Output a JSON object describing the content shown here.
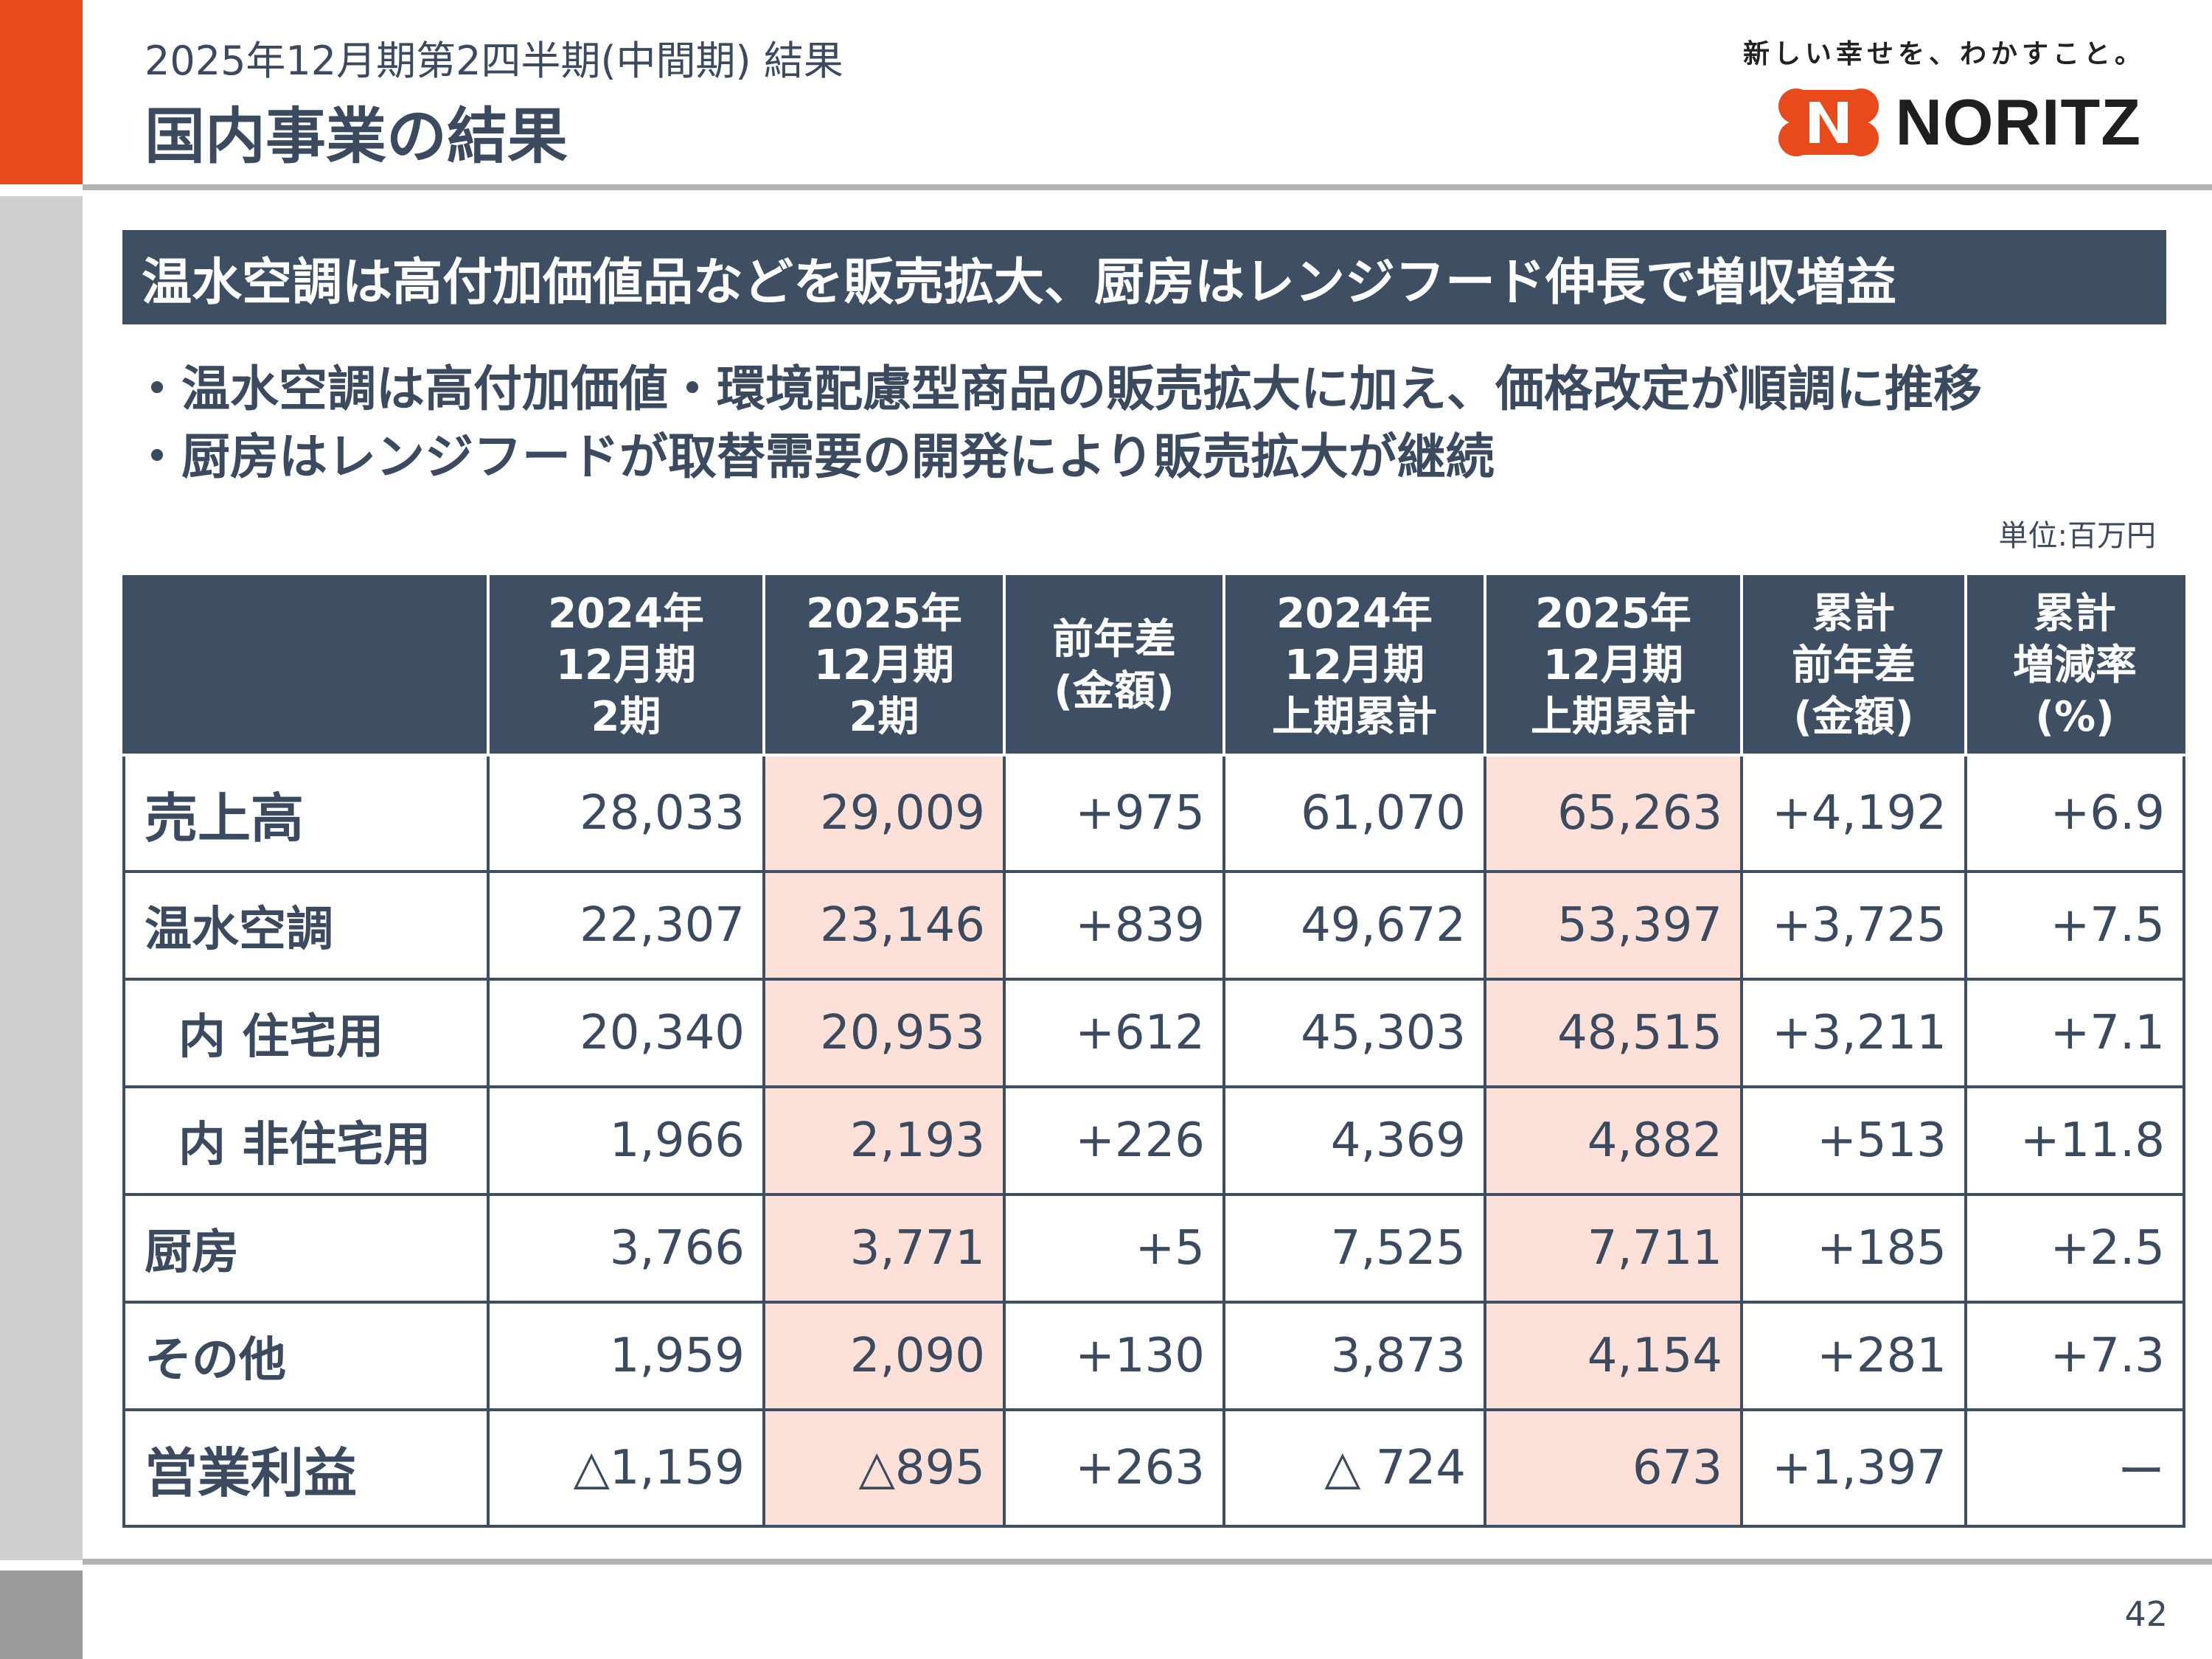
{
  "header": {
    "supertitle": "2025年12月期第2四半期(中間期) 結果",
    "title": "国内事業の結果",
    "tagline": "新しい幸せを、わかすこと。",
    "brand": "NORITZ"
  },
  "banner": "温水空調は高付加価値品などを販売拡大、厨房はレンジフード伸長で増収増益",
  "bullets": [
    "・温水空調は高付加価値・環境配慮型商品の販売拡大に加え、価格改定が順調に推移",
    "・厨房はレンジフードが取替需要の開発により販売拡大が継続"
  ],
  "unit": "単位:百万円",
  "table": {
    "headers": [
      [
        ""
      ],
      [
        "2024年",
        "12月期",
        "2期"
      ],
      [
        "2025年",
        "12月期",
        "2期"
      ],
      [
        "前年差",
        "(金額)"
      ],
      [
        "2024年",
        "12月期",
        "上期累計"
      ],
      [
        "2025年",
        "12月期",
        "上期累計"
      ],
      [
        "累計",
        "前年差",
        "(金額)"
      ],
      [
        "累計",
        "増減率",
        "(%)"
      ]
    ],
    "rows": [
      {
        "label": "売上高",
        "values": [
          "28,033",
          "29,009",
          "+975",
          "61,070",
          "65,263",
          "+4,192",
          "+6.9"
        ]
      },
      {
        "label": "温水空調",
        "values": [
          "22,307",
          "23,146",
          "+839",
          "49,672",
          "53,397",
          "+3,725",
          "+7.5"
        ]
      },
      {
        "label": "内 住宅用",
        "values": [
          "20,340",
          "20,953",
          "+612",
          "45,303",
          "48,515",
          "+3,211",
          "+7.1"
        ]
      },
      {
        "label": "内 非住宅用",
        "values": [
          "1,966",
          "2,193",
          "+226",
          "4,369",
          "4,882",
          "+513",
          "+11.8"
        ]
      },
      {
        "label": "厨房",
        "values": [
          "3,766",
          "3,771",
          "+5",
          "7,525",
          "7,711",
          "+185",
          "+2.5"
        ]
      },
      {
        "label": "その他",
        "values": [
          "1,959",
          "2,090",
          "+130",
          "3,873",
          "4,154",
          "+281",
          "+7.3"
        ]
      },
      {
        "label": "営業利益",
        "values": [
          "△1,159",
          "△895",
          "+263",
          "△ 724",
          "673",
          "+1,397",
          "ー"
        ]
      }
    ]
  },
  "page_number": "42",
  "colors": {
    "accent": "#e84a1c",
    "header_bg": "#3e4f64",
    "highlight": "#fde1d8",
    "text": "#3b4a5e"
  }
}
